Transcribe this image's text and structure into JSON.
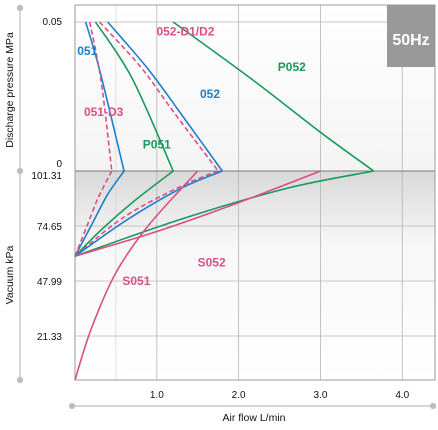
{
  "chart_data": {
    "type": "line",
    "badge": "50Hz",
    "xlabel": "Air flow  L/min",
    "ylabel_top": "Discharge pressure  MPa",
    "ylabel_bottom": "Vacuum  kPa",
    "x_ticks": [
      "1.0",
      "2.0",
      "3.0",
      "4.0"
    ],
    "xlim": [
      0,
      4.4
    ],
    "pressure_ticks": [
      "0.05",
      "0"
    ],
    "pressure_lim": [
      0,
      0.05
    ],
    "vacuum_ticks": [
      "101.31",
      "74.65",
      "47.99",
      "21.33"
    ],
    "vacuum_lim": [
      0,
      101.31
    ],
    "colors": {
      "blue": "#1d7fc9",
      "green": "#1a9a5a",
      "pink": "#d94f86"
    },
    "series": [
      {
        "name": "051",
        "color": "blue",
        "dash": false,
        "label_pos": [
          0.15,
          0.039
        ],
        "pressure": [
          [
            0.13,
            0.05
          ],
          [
            0.3,
            0.034
          ],
          [
            0.6,
            0.0
          ]
        ],
        "vacuum": [
          [
            0.6,
            101.31
          ],
          [
            0.4,
            90
          ],
          [
            0.2,
            75
          ],
          [
            0.0,
            60
          ]
        ]
      },
      {
        "name": "051-D3",
        "color": "pink",
        "dash": true,
        "label_pos": [
          0.35,
          0.0185
        ],
        "pressure": [
          [
            0.18,
            0.05
          ],
          [
            0.32,
            0.03
          ],
          [
            0.45,
            0.0
          ]
        ],
        "vacuum": [
          [
            0.45,
            101.31
          ],
          [
            0.28,
            88
          ],
          [
            0.14,
            74
          ],
          [
            0.0,
            60
          ]
        ]
      },
      {
        "name": "P051",
        "color": "green",
        "dash": false,
        "label_pos": [
          1.0,
          0.0075
        ],
        "pressure": [
          [
            0.25,
            0.05
          ],
          [
            0.7,
            0.031
          ],
          [
            1.2,
            0.0
          ]
        ],
        "vacuum": [
          [
            1.2,
            101.31
          ],
          [
            0.7,
            86
          ],
          [
            0.3,
            72
          ],
          [
            0.0,
            60
          ]
        ]
      },
      {
        "name": "052-D1/D2",
        "color": "pink",
        "dash": true,
        "label_pos": [
          1.35,
          0.0455
        ],
        "pressure": [
          [
            0.3,
            0.05
          ],
          [
            0.8,
            0.035
          ],
          [
            1.2,
            0.02
          ],
          [
            1.75,
            0.0
          ]
        ],
        "vacuum": [
          [
            1.75,
            101.31
          ],
          [
            1.3,
            94
          ],
          [
            0.6,
            79
          ],
          [
            0.0,
            60
          ]
        ]
      },
      {
        "name": "052",
        "color": "blue",
        "dash": false,
        "label_pos": [
          1.65,
          0.0245
        ],
        "pressure": [
          [
            0.4,
            0.05
          ],
          [
            0.9,
            0.034
          ],
          [
            1.3,
            0.019
          ],
          [
            1.8,
            0.0
          ]
        ],
        "vacuum": [
          [
            1.8,
            101.31
          ],
          [
            1.3,
            93
          ],
          [
            0.65,
            78
          ],
          [
            0.0,
            60
          ]
        ]
      },
      {
        "name": "P052",
        "color": "green",
        "dash": false,
        "label_pos": [
          2.65,
          0.0335
        ],
        "pressure": [
          [
            1.2,
            0.05
          ],
          [
            2.2,
            0.03
          ],
          [
            3.0,
            0.013
          ],
          [
            3.65,
            0.0
          ]
        ],
        "vacuum": [
          [
            3.65,
            101.31
          ],
          [
            2.6,
            93
          ],
          [
            1.3,
            78
          ],
          [
            0.0,
            60
          ]
        ]
      },
      {
        "name": "S051",
        "color": "pink",
        "dash": false,
        "label_pos": [
          0.75,
          46
        ],
        "vacuum": [
          [
            0.0,
            0
          ],
          [
            0.2,
            25
          ],
          [
            0.5,
            52
          ],
          [
            0.9,
            75
          ],
          [
            1.5,
            101.31
          ]
        ]
      },
      {
        "name": "S052",
        "color": "pink",
        "dash": false,
        "label_pos": [
          1.67,
          55
        ],
        "vacuum": [
          [
            0.0,
            60
          ],
          [
            1.0,
            72
          ],
          [
            2.0,
            86
          ],
          [
            3.0,
            101.31
          ]
        ]
      }
    ]
  }
}
